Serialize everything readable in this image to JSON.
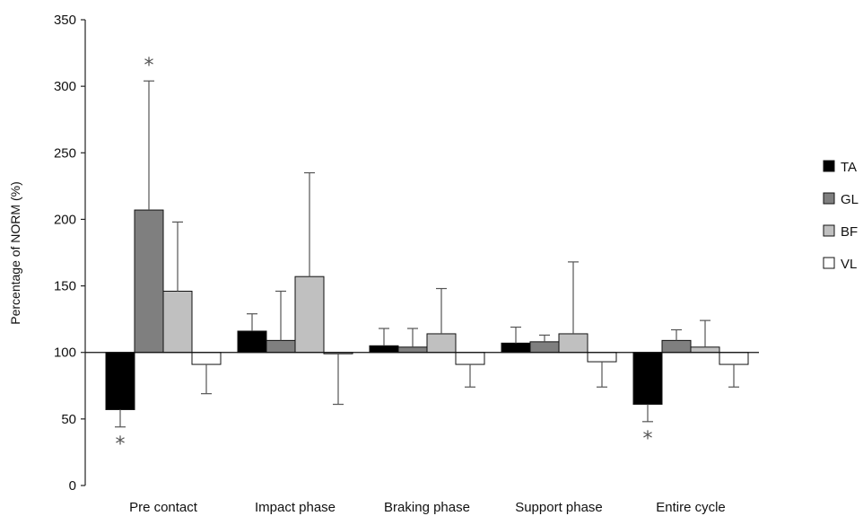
{
  "chart_data": {
    "type": "bar",
    "title": "",
    "xlabel": "",
    "ylabel": "Percentage of NORM (%)",
    "ylim": [
      0,
      350
    ],
    "yticks": [
      0,
      50,
      100,
      150,
      200,
      250,
      300,
      350
    ],
    "baseline": 100,
    "grid": false,
    "legend_position": "right",
    "categories": [
      "Pre contact",
      "Impact phase",
      "Braking phase",
      "Support phase",
      "Entire cycle"
    ],
    "series": [
      {
        "name": "TA",
        "color": "#000000",
        "values": [
          57,
          116,
          105,
          107,
          61
        ],
        "error": [
          13,
          13,
          13,
          12,
          13
        ]
      },
      {
        "name": "GL",
        "color": "#7f7f7f",
        "values": [
          207,
          109,
          104,
          108,
          109
        ],
        "error": [
          97,
          37,
          14,
          5,
          8
        ]
      },
      {
        "name": "BF",
        "color": "#c0c0c0",
        "values": [
          146,
          157,
          114,
          114,
          104
        ],
        "error": [
          52,
          78,
          34,
          54,
          20
        ]
      },
      {
        "name": "VL",
        "color": "#ffffff",
        "values": [
          91,
          99,
          91,
          93,
          91
        ],
        "error": [
          22,
          38,
          17,
          19,
          17
        ]
      }
    ],
    "annotations": [
      {
        "text": "*",
        "category": 0,
        "series": 1,
        "position": "above"
      },
      {
        "text": "*",
        "category": 0,
        "series": 0,
        "position": "below"
      },
      {
        "text": "*",
        "category": 4,
        "series": 0,
        "position": "below"
      }
    ]
  }
}
